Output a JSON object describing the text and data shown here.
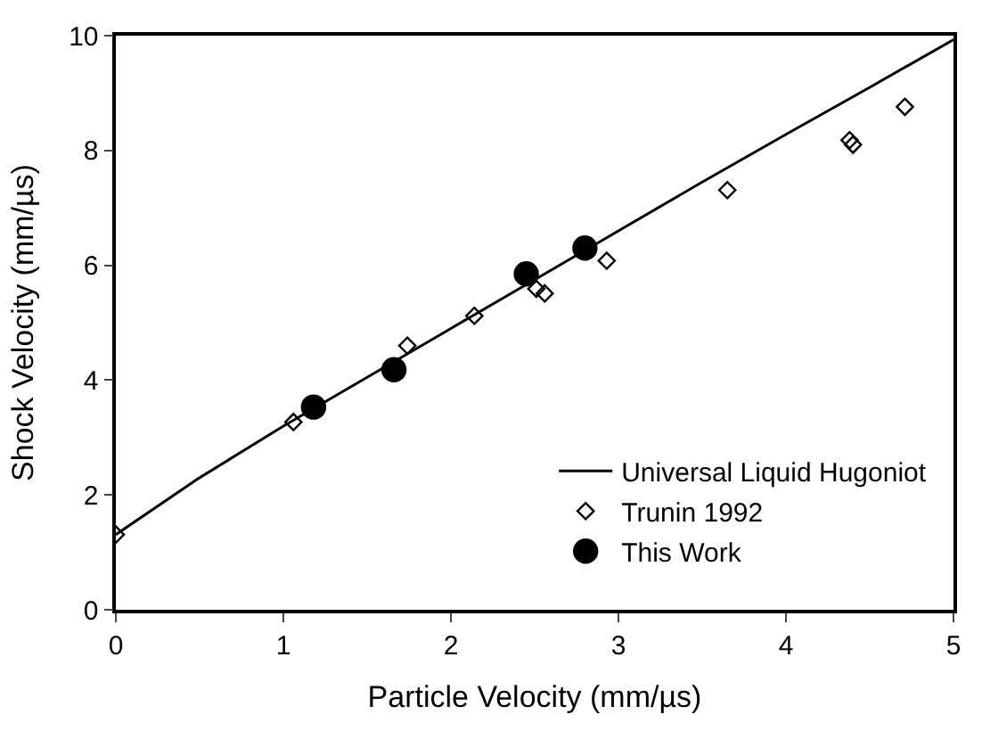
{
  "chart_data": {
    "type": "scatter",
    "xlabel": "Particle Velocity (mm/µs)",
    "ylabel": "Shock Velocity (mm/µs)",
    "xlim": [
      0,
      5
    ],
    "ylim": [
      0,
      10
    ],
    "xticks": [
      0,
      1,
      2,
      3,
      4,
      5
    ],
    "yticks": [
      0,
      2,
      4,
      6,
      8,
      10
    ],
    "legend": "bottom right",
    "series": [
      {
        "name": "Universal Liquid Hugoniot",
        "type": "line",
        "color": "#000000",
        "marker": "none",
        "line_style": "solid",
        "x": [
          0,
          0.5,
          1,
          1.5,
          2,
          2.5,
          3,
          3.5,
          4,
          4.5,
          5
        ],
        "values": [
          1.31,
          2.3,
          3.2,
          4.05,
          4.9,
          5.75,
          6.6,
          7.45,
          8.28,
          9.1,
          9.93
        ]
      },
      {
        "name": "Trunin 1992",
        "color": "#000000",
        "marker": "diamond-open",
        "x": [
          0,
          1.06,
          1.74,
          2.14,
          2.51,
          2.56,
          2.93,
          3.65,
          4.38,
          4.4,
          4.71
        ],
        "values": [
          1.31,
          3.27,
          4.6,
          5.12,
          5.59,
          5.51,
          6.08,
          7.31,
          8.18,
          8.1,
          8.76
        ]
      },
      {
        "name": "This Work",
        "color": "#000000",
        "marker": "circle",
        "x": [
          1.18,
          1.66,
          2.45,
          2.8
        ],
        "values": [
          3.53,
          4.18,
          5.85,
          6.3
        ]
      }
    ]
  }
}
